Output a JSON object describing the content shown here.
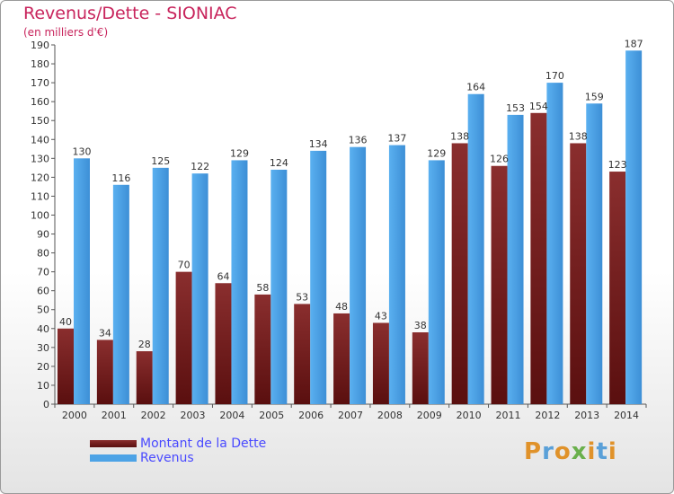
{
  "title": "Revenus/Dette - SIONIAC",
  "subtitle": "(en milliers d'€)",
  "brand": "Proxiti",
  "brand_colors": [
    "#e0922a",
    "#5aa0d8",
    "#e0922a",
    "#6ab04c",
    "#e0922a",
    "#5aa0d8",
    "#e0922a"
  ],
  "colors": {
    "dette": "#7a2424",
    "revenus": "#4da3e6",
    "title": "#c8245c",
    "legend_text": "#4a4aff"
  },
  "chart_data": {
    "type": "bar",
    "title": "Revenus/Dette - SIONIAC",
    "subtitle": "(en milliers d'€)",
    "categories": [
      "2000",
      "2001",
      "2002",
      "2003",
      "2004",
      "2005",
      "2006",
      "2007",
      "2008",
      "2009",
      "2010",
      "2011",
      "2012",
      "2013",
      "2014"
    ],
    "series": [
      {
        "name": "Montant de la Dette",
        "values": [
          40,
          34,
          28,
          70,
          64,
          58,
          53,
          48,
          43,
          38,
          138,
          126,
          154,
          138,
          123
        ]
      },
      {
        "name": "Revenus",
        "values": [
          130,
          116,
          125,
          122,
          129,
          124,
          134,
          136,
          137,
          129,
          164,
          153,
          170,
          159,
          187
        ]
      }
    ],
    "ylim": [
      0,
      190
    ],
    "ytick_step": 10,
    "grid": false,
    "legend_position": "bottom-left"
  }
}
